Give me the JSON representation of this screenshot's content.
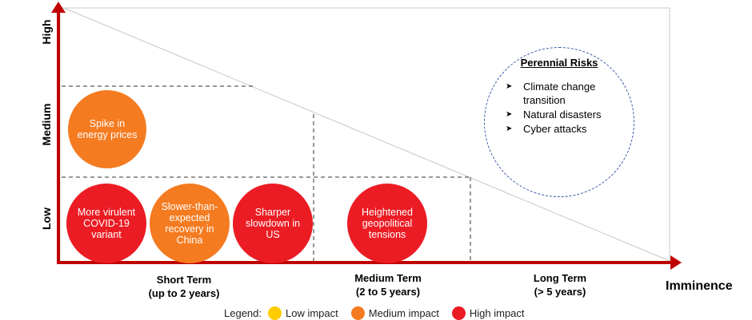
{
  "y_axis": {
    "levels": [
      "High",
      "Medium",
      "Low"
    ]
  },
  "x_axis": {
    "title": "Imminence",
    "terms": [
      {
        "line1": "Short Term",
        "line2": "(up to 2 years)"
      },
      {
        "line1": "Medium Term",
        "line2": "(2 to 5 years)"
      },
      {
        "line1": "Long Term",
        "line2": "(> 5 years)"
      }
    ]
  },
  "bubbles": [
    {
      "text": "Spike in energy prices",
      "impact": "Medium"
    },
    {
      "text": "More virulent COVID-19 variant",
      "impact": "High"
    },
    {
      "text": "Slower-than-expected recovery in China",
      "impact": "Medium"
    },
    {
      "text": "Sharper slowdown in US",
      "impact": "High"
    },
    {
      "text": "Heightened geopolitical tensions",
      "impact": "High"
    }
  ],
  "perennial": {
    "title": "Perennial Risks",
    "items": [
      "Climate change transition",
      "Natural disasters",
      "Cyber attacks"
    ]
  },
  "legend": {
    "label": "Legend:",
    "items": [
      {
        "label": "Low impact",
        "color": "#ffcc00"
      },
      {
        "label": "Medium impact",
        "color": "#f47b20"
      },
      {
        "label": "High impact",
        "color": "#ec1c24"
      }
    ]
  },
  "colors": {
    "axis": "#c00000",
    "high": "#ec1c24",
    "medium": "#f47b20",
    "low": "#ffcc00",
    "perennial_border": "#3b5aa8"
  }
}
